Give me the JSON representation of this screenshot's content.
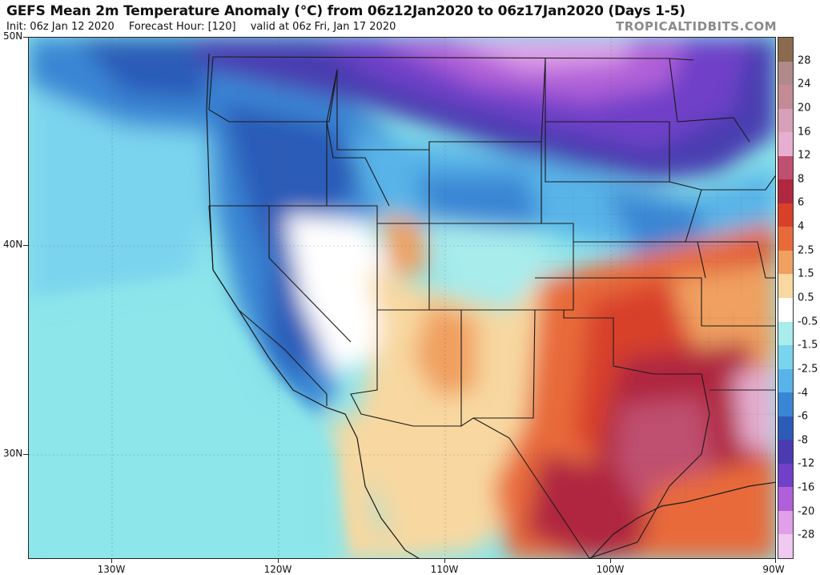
{
  "header": {
    "title": "GEFS Mean 2m Temperature Anomaly (°C) from 06z12Jan2020 to 06z17Jan2020 (Days 1-5)",
    "init": "Init: 06z Jan 12 2020",
    "forecast_hour": "Forecast Hour: [120]",
    "valid": "valid at 06z Fri, Jan 17 2020",
    "brand": "TROPICALTIDBITS.COM"
  },
  "axes": {
    "lat_labels": [
      "50N",
      "40N",
      "30N"
    ],
    "lon_labels": [
      "130W",
      "120W",
      "110W",
      "100W",
      "90W"
    ]
  },
  "colorbar": {
    "labels": [
      "28",
      "24",
      "20",
      "16",
      "12",
      "8",
      "6",
      "4",
      "2.5",
      "1.5",
      "0.5",
      "-0.5",
      "-1.5",
      "-2.5",
      "-4",
      "-6",
      "-8",
      "-12",
      "-16",
      "-20",
      "-28"
    ],
    "colors": [
      "#8c6a4e",
      "#b08a8a",
      "#c48a96",
      "#d6a0b8",
      "#e6aed0",
      "#c05070",
      "#b02840",
      "#d8402a",
      "#e86a3a",
      "#f0a060",
      "#f8d8a0",
      "#ffffff",
      "#a8ecec",
      "#7ad4ee",
      "#58b4e8",
      "#3a86d4",
      "#2c5cb8",
      "#4a3cb0",
      "#7040c8",
      "#b060d8",
      "#e0a0e8",
      "#f0c8f0"
    ]
  }
}
